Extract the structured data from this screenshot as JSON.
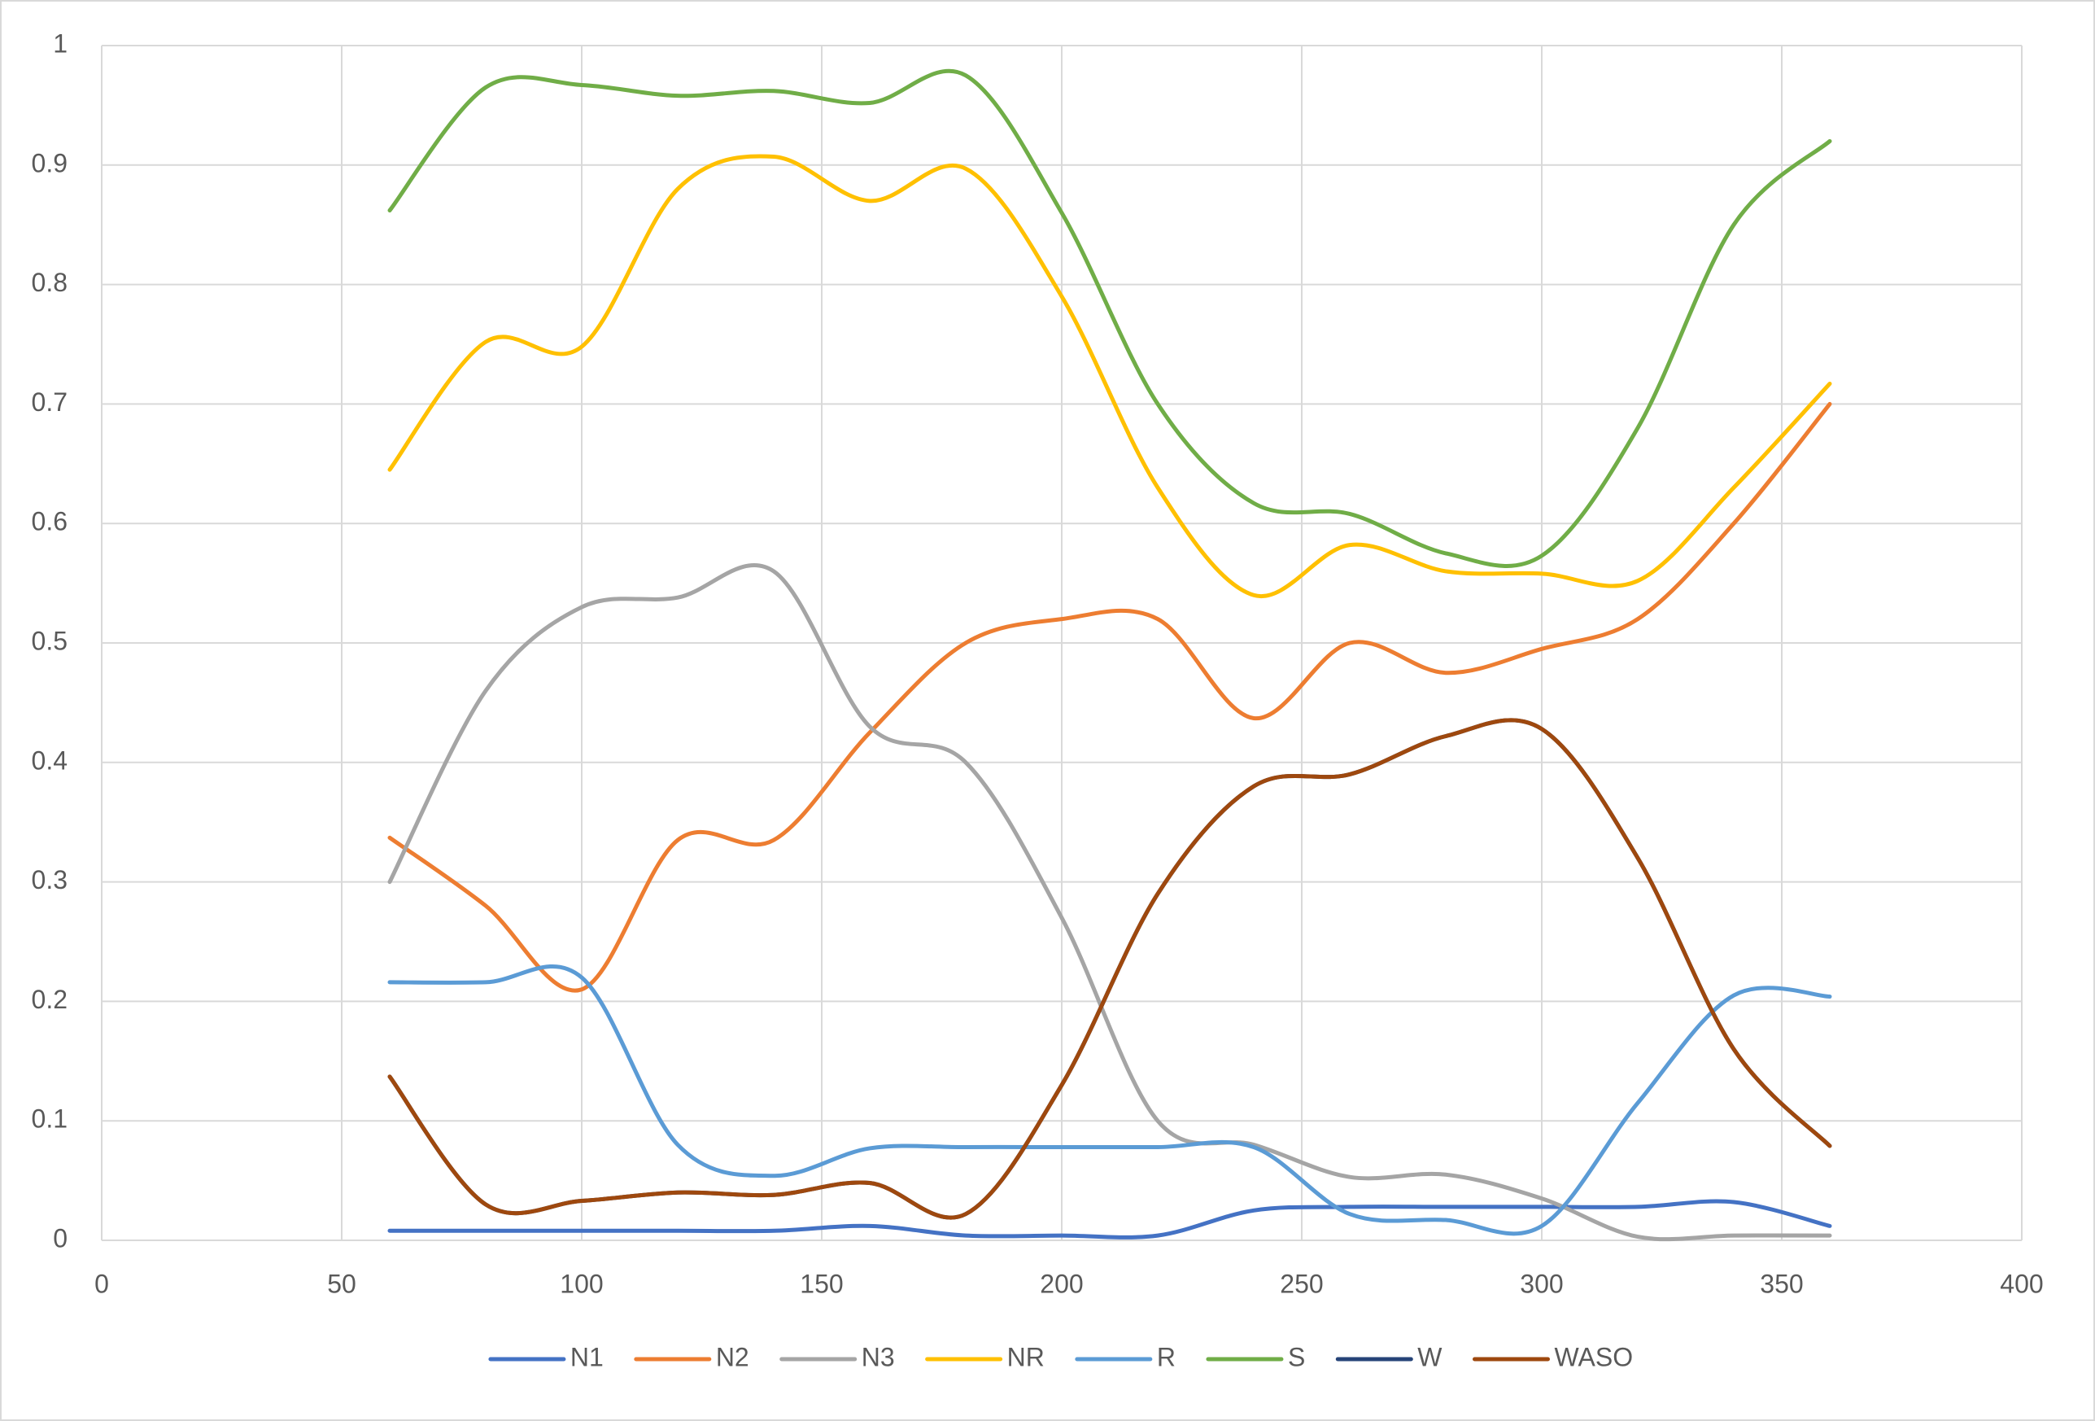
{
  "chart_data": {
    "type": "line",
    "x": [
      60,
      80,
      100,
      120,
      140,
      160,
      180,
      200,
      220,
      240,
      260,
      280,
      300,
      320,
      340,
      360
    ],
    "series": [
      {
        "name": "N1",
        "color": "#4472c4",
        "values": [
          0.008,
          0.008,
          0.008,
          0.008,
          0.008,
          0.012,
          0.004,
          0.004,
          0.004,
          0.025,
          0.028,
          0.028,
          0.028,
          0.028,
          0.032,
          0.012
        ]
      },
      {
        "name": "N2",
        "color": "#ed7d31",
        "values": [
          0.337,
          0.28,
          0.21,
          0.335,
          0.335,
          0.425,
          0.5,
          0.52,
          0.52,
          0.437,
          0.5,
          0.475,
          0.495,
          0.52,
          0.6,
          0.7
        ]
      },
      {
        "name": "N3",
        "color": "#a5a5a5",
        "values": [
          0.3,
          0.46,
          0.53,
          0.538,
          0.56,
          0.43,
          0.4,
          0.27,
          0.1,
          0.08,
          0.053,
          0.055,
          0.035,
          0.003,
          0.004,
          0.004
        ]
      },
      {
        "name": "NR",
        "color": "#ffc000",
        "values": [
          0.645,
          0.752,
          0.748,
          0.88,
          0.907,
          0.87,
          0.897,
          0.79,
          0.63,
          0.54,
          0.582,
          0.56,
          0.558,
          0.552,
          0.63,
          0.717
        ]
      },
      {
        "name": "R",
        "color": "#5b9bd5",
        "values": [
          0.216,
          0.216,
          0.22,
          0.08,
          0.054,
          0.077,
          0.078,
          0.078,
          0.078,
          0.078,
          0.022,
          0.017,
          0.012,
          0.115,
          0.205,
          0.204
        ]
      },
      {
        "name": "S",
        "color": "#70ad47",
        "values": [
          0.862,
          0.965,
          0.967,
          0.958,
          0.962,
          0.952,
          0.975,
          0.86,
          0.7,
          0.617,
          0.608,
          0.575,
          0.573,
          0.68,
          0.85,
          0.92
        ]
      },
      {
        "name": "W",
        "color": "#264478",
        "values": [
          0.137,
          0.03,
          0.033,
          0.04,
          0.038,
          0.048,
          0.022,
          0.13,
          0.29,
          0.38,
          0.39,
          0.422,
          0.428,
          0.32,
          0.16,
          0.079
        ]
      },
      {
        "name": "WASO",
        "color": "#9e480e",
        "values": [
          0.137,
          0.03,
          0.033,
          0.04,
          0.038,
          0.048,
          0.022,
          0.13,
          0.29,
          0.38,
          0.39,
          0.422,
          0.428,
          0.32,
          0.16,
          0.079
        ]
      }
    ],
    "xlim": [
      0,
      400
    ],
    "xticks": [
      0,
      50,
      100,
      150,
      200,
      250,
      300,
      350,
      400
    ],
    "ylim": [
      0,
      1
    ],
    "yticks": [
      0,
      0.1,
      0.2,
      0.3,
      0.4,
      0.5,
      0.6,
      0.7,
      0.8,
      0.9,
      1
    ],
    "grid": true,
    "smooth": true,
    "legend": "bottom"
  }
}
